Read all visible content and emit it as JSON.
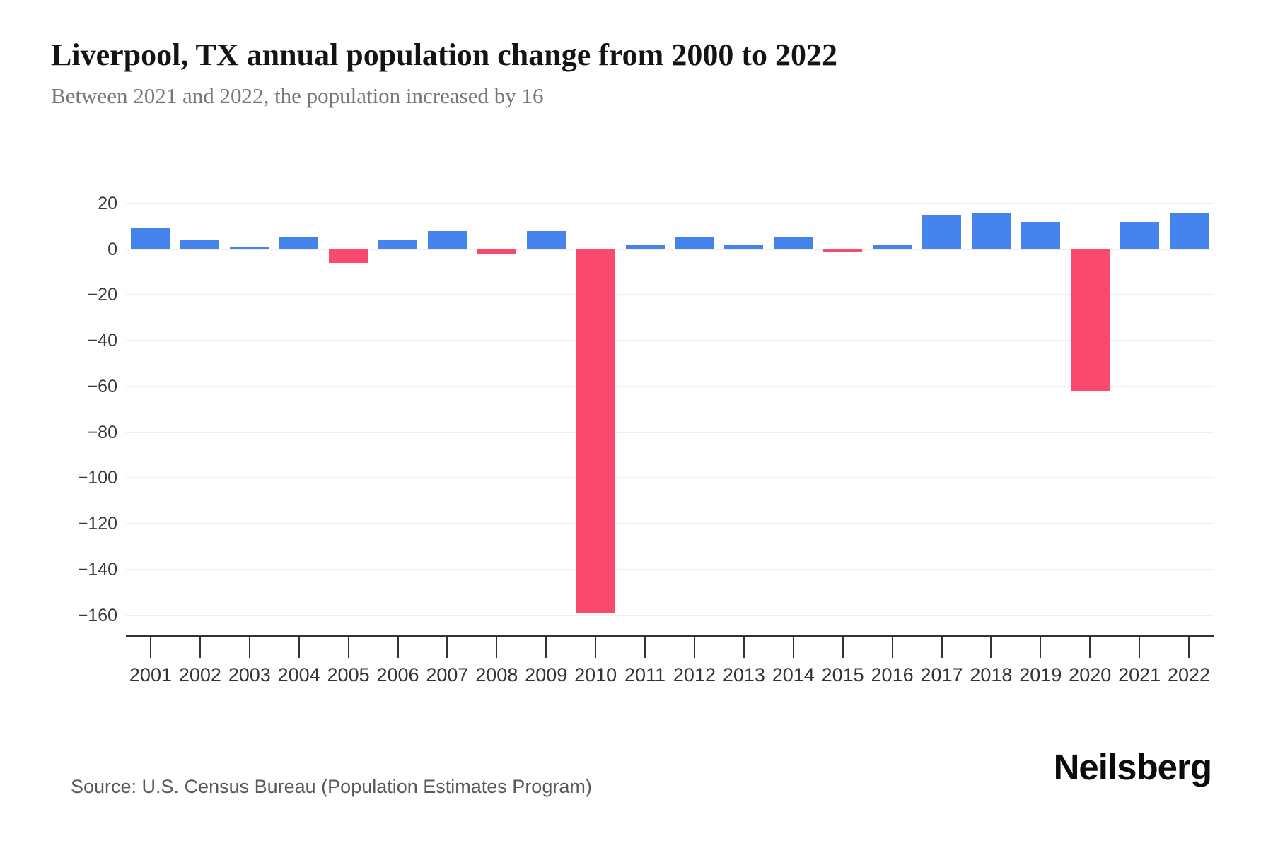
{
  "header": {
    "title": "Liverpool, TX annual population change from 2000 to 2022",
    "subtitle": "Between 2021 and 2022, the population increased by 16"
  },
  "chart_data": {
    "type": "bar",
    "title": "Liverpool, TX annual population change from 2000 to 2022",
    "subtitle": "Between 2021 and 2022, the population increased by 16",
    "categories": [
      "2001",
      "2002",
      "2003",
      "2004",
      "2005",
      "2006",
      "2007",
      "2008",
      "2009",
      "2010",
      "2011",
      "2012",
      "2013",
      "2014",
      "2015",
      "2016",
      "2017",
      "2018",
      "2019",
      "2020",
      "2021",
      "2022"
    ],
    "values": [
      9,
      4,
      1,
      5,
      -6,
      4,
      8,
      -2,
      8,
      -159,
      2,
      5,
      2,
      5,
      -1,
      2,
      15,
      16,
      12,
      -62,
      12,
      16
    ],
    "xlabel": "",
    "ylabel": "",
    "yticks": [
      20,
      0,
      -20,
      -40,
      -60,
      -80,
      -100,
      -120,
      -140,
      -160
    ],
    "ylim": [
      -170,
      25
    ],
    "grid": "horizontal-only",
    "legend_position": "none",
    "positive_color": "#4584EC",
    "negative_color": "#F9496C",
    "gridline_color": "#efefef",
    "axis_color": "#333333"
  },
  "footer": {
    "source": "Source: U.S. Census Bureau (Population Estimates Program)",
    "logo": "Neilsberg"
  }
}
